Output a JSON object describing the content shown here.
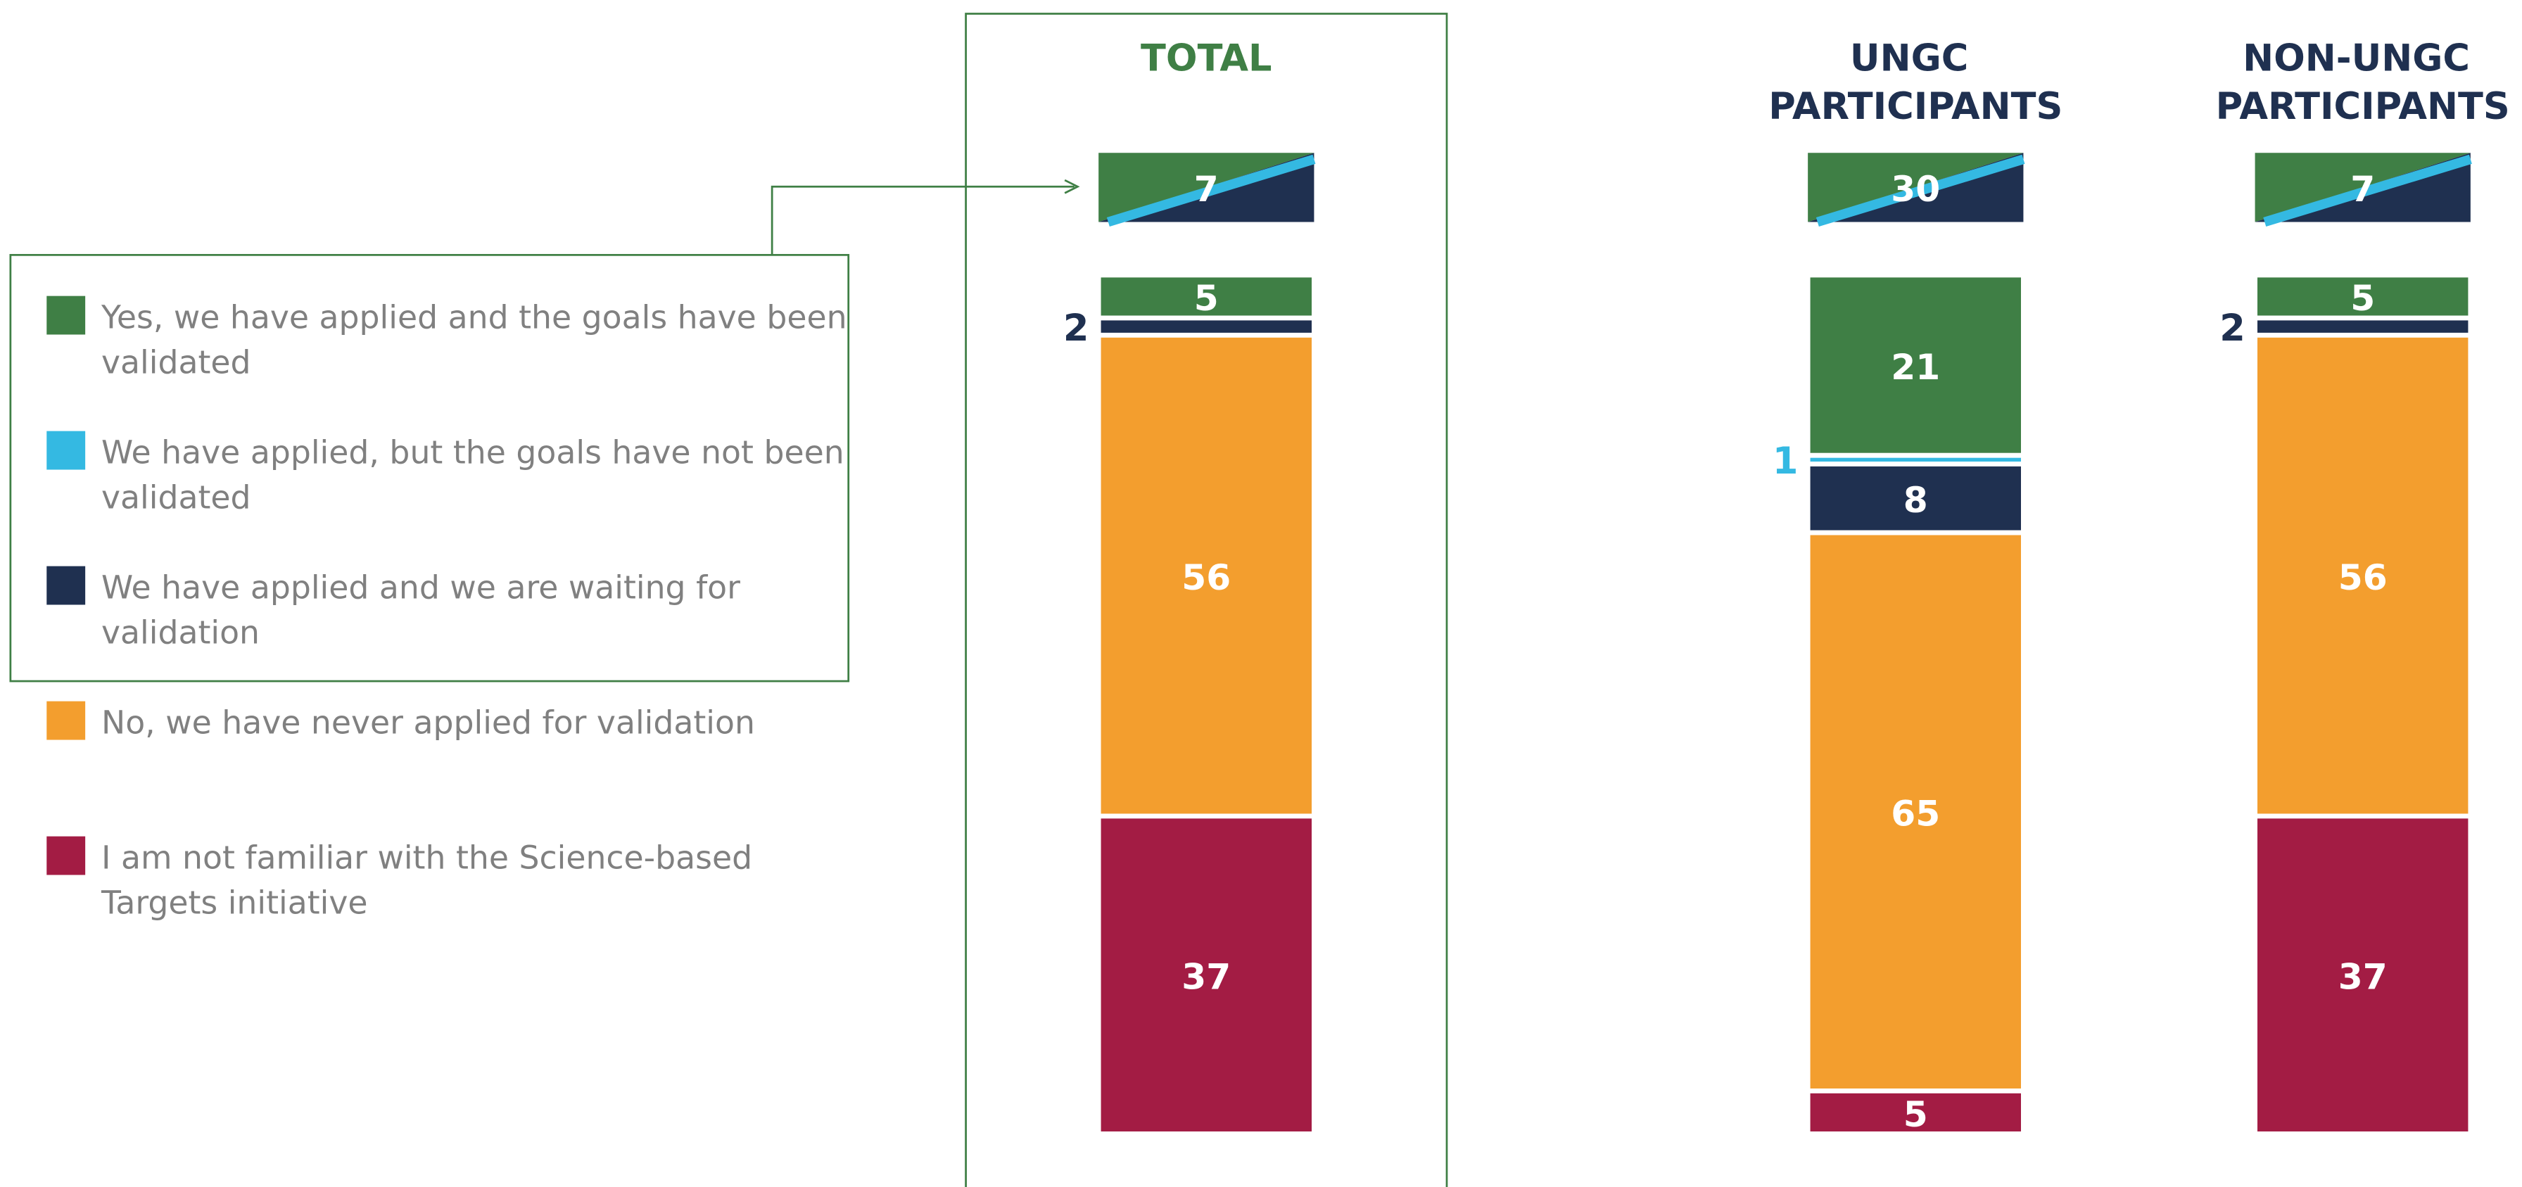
{
  "chart_data": {
    "type": "bar",
    "stacked": true,
    "categories": [
      "TOTAL",
      "UNGC PARTICIPANTS",
      "NON-UNGC PARTICIPANTS"
    ],
    "combined_values": [
      7,
      30,
      7
    ],
    "series": [
      {
        "name": "Yes, we have applied and the goals have been validated",
        "color": "#3f7f45",
        "values": [
          5,
          21,
          5
        ]
      },
      {
        "name": "We have applied, but the goals have not been validated",
        "color": "#34b9e2",
        "values": [
          null,
          1,
          null
        ]
      },
      {
        "name": "We have applied and we are waiting for validation",
        "color": "#1f3050",
        "values": [
          2,
          8,
          2
        ]
      },
      {
        "name": "No, we have never applied for validation",
        "color": "#f39e2e",
        "values": [
          56,
          65,
          56
        ]
      },
      {
        "name": "I am not familiar with the Science-based Targets initiative",
        "color": "#a31c44",
        "values": [
          37,
          5,
          37
        ]
      }
    ]
  }
}
